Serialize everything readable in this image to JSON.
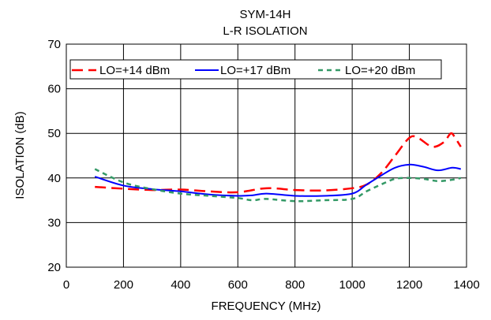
{
  "chart_data": {
    "type": "line",
    "title": "SYM-14H",
    "subtitle": "L-R ISOLATION",
    "xlabel": "FREQUENCY (MHz)",
    "ylabel": "ISOLATION (dB)",
    "xlim": [
      0,
      1400
    ],
    "ylim": [
      20,
      70
    ],
    "x_ticks": [
      0,
      200,
      400,
      600,
      800,
      1000,
      1200,
      1400
    ],
    "y_ticks": [
      20,
      30,
      40,
      50,
      60,
      70
    ],
    "grid": true,
    "legend_position": "top",
    "series": [
      {
        "name": "LO=+14 dBm",
        "color": "#ff0000",
        "dash": "long-dash",
        "points": [
          [
            100,
            38.0
          ],
          [
            200,
            37.6
          ],
          [
            300,
            37.3
          ],
          [
            400,
            37.4
          ],
          [
            500,
            37.0
          ],
          [
            600,
            36.8
          ],
          [
            700,
            37.7
          ],
          [
            800,
            37.3
          ],
          [
            900,
            37.2
          ],
          [
            1000,
            37.7
          ],
          [
            1050,
            38.5
          ],
          [
            1100,
            41.0
          ],
          [
            1150,
            45.0
          ],
          [
            1200,
            49.0
          ],
          [
            1230,
            49.0
          ],
          [
            1280,
            47.0
          ],
          [
            1320,
            48.0
          ],
          [
            1345,
            50.0
          ],
          [
            1360,
            49.0
          ],
          [
            1380,
            47.0
          ]
        ]
      },
      {
        "name": "LO=+17 dBm",
        "color": "#0000ff",
        "dash": "solid",
        "points": [
          [
            100,
            40.3
          ],
          [
            200,
            38.3
          ],
          [
            300,
            37.5
          ],
          [
            400,
            37.0
          ],
          [
            500,
            36.3
          ],
          [
            600,
            36.0
          ],
          [
            650,
            36.1
          ],
          [
            700,
            36.5
          ],
          [
            800,
            36.0
          ],
          [
            900,
            36.0
          ],
          [
            1000,
            36.5
          ],
          [
            1050,
            38.5
          ],
          [
            1100,
            40.5
          ],
          [
            1150,
            42.3
          ],
          [
            1200,
            43.0
          ],
          [
            1250,
            42.5
          ],
          [
            1300,
            41.7
          ],
          [
            1350,
            42.3
          ],
          [
            1380,
            42.0
          ]
        ]
      },
      {
        "name": "LO=+20 dBm",
        "color": "#339966",
        "dash": "short-dash",
        "points": [
          [
            100,
            42.0
          ],
          [
            200,
            39.0
          ],
          [
            300,
            37.5
          ],
          [
            400,
            36.5
          ],
          [
            500,
            36.0
          ],
          [
            600,
            35.5
          ],
          [
            650,
            35.0
          ],
          [
            700,
            35.3
          ],
          [
            800,
            34.8
          ],
          [
            900,
            35.0
          ],
          [
            1000,
            35.3
          ],
          [
            1050,
            37.0
          ],
          [
            1100,
            38.5
          ],
          [
            1150,
            39.8
          ],
          [
            1200,
            40.0
          ],
          [
            1250,
            39.8
          ],
          [
            1300,
            39.3
          ],
          [
            1350,
            39.6
          ],
          [
            1380,
            40.0
          ]
        ]
      }
    ]
  }
}
